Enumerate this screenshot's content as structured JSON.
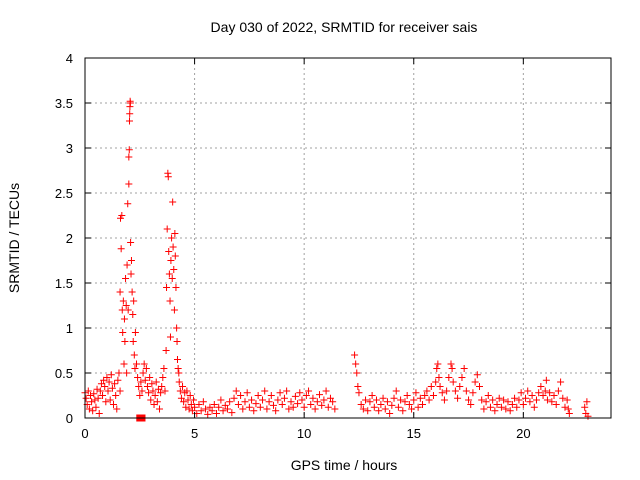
{
  "chart_data": {
    "type": "scatter",
    "title": "Day 030 of 2022, SRMTID for receiver sais",
    "xlabel": "GPS time / hours",
    "ylabel": "SRMTID / TECUs",
    "xlim": [
      0,
      24
    ],
    "ylim": [
      0,
      4
    ],
    "xticks": [
      0,
      5,
      10,
      15,
      20
    ],
    "yticks": [
      0,
      0.5,
      1,
      1.5,
      2,
      2.5,
      3,
      3.5,
      4
    ],
    "xtick_labels": [
      "0",
      "5",
      "10",
      "15",
      "20"
    ],
    "ytick_labels": [
      "0",
      "0.5",
      "1",
      "1.5",
      "2",
      "2.5",
      "3",
      "3.5",
      "4"
    ],
    "grid": true,
    "marker": "+",
    "color": "#ff0000",
    "series": [
      {
        "name": "SRMTID",
        "points": [
          [
            0.0,
            0.28
          ],
          [
            0.05,
            0.22
          ],
          [
            0.1,
            0.15
          ],
          [
            0.15,
            0.3
          ],
          [
            0.2,
            0.1
          ],
          [
            0.25,
            0.25
          ],
          [
            0.3,
            0.18
          ],
          [
            0.35,
            0.08
          ],
          [
            0.4,
            0.27
          ],
          [
            0.45,
            0.2
          ],
          [
            0.5,
            0.12
          ],
          [
            0.55,
            0.32
          ],
          [
            0.6,
            0.22
          ],
          [
            0.65,
            0.05
          ],
          [
            0.7,
            0.3
          ],
          [
            0.75,
            0.38
          ],
          [
            0.8,
            0.25
          ],
          [
            0.85,
            0.42
          ],
          [
            0.9,
            0.35
          ],
          [
            0.95,
            0.18
          ],
          [
            1.0,
            0.45
          ],
          [
            1.05,
            0.3
          ],
          [
            1.1,
            0.4
          ],
          [
            1.15,
            0.2
          ],
          [
            1.2,
            0.48
          ],
          [
            1.25,
            0.33
          ],
          [
            1.3,
            0.15
          ],
          [
            1.35,
            0.38
          ],
          [
            1.4,
            0.25
          ],
          [
            1.45,
            0.1
          ],
          [
            1.5,
            0.42
          ],
          [
            1.55,
            0.5
          ],
          [
            1.6,
            0.3
          ],
          [
            1.6,
            1.4
          ],
          [
            1.62,
            2.22
          ],
          [
            1.65,
            1.88
          ],
          [
            1.68,
            2.25
          ],
          [
            1.7,
            1.2
          ],
          [
            1.72,
            0.95
          ],
          [
            1.75,
            1.3
          ],
          [
            1.78,
            0.6
          ],
          [
            1.8,
            1.1
          ],
          [
            1.82,
            0.85
          ],
          [
            1.85,
            1.55
          ],
          [
            1.88,
            1.25
          ],
          [
            1.9,
            0.5
          ],
          [
            1.92,
            1.7
          ],
          [
            1.95,
            2.38
          ],
          [
            1.97,
            1.2
          ],
          [
            2.0,
            2.6
          ],
          [
            2.0,
            2.9
          ],
          [
            2.02,
            2.98
          ],
          [
            2.03,
            3.3
          ],
          [
            2.04,
            3.38
          ],
          [
            2.05,
            3.46
          ],
          [
            2.06,
            3.52
          ],
          [
            2.07,
            3.5
          ],
          [
            2.08,
            1.95
          ],
          [
            2.1,
            1.6
          ],
          [
            2.12,
            1.75
          ],
          [
            2.15,
            1.4
          ],
          [
            2.18,
            1.15
          ],
          [
            2.2,
            0.85
          ],
          [
            2.22,
            1.3
          ],
          [
            2.25,
            0.7
          ],
          [
            2.28,
            0.55
          ],
          [
            2.3,
            0.95
          ],
          [
            2.35,
            0.6
          ],
          [
            2.4,
            0.45
          ],
          [
            2.45,
            0.35
          ],
          [
            2.5,
            0.25
          ],
          [
            2.55,
            0.4
          ],
          [
            2.6,
            0.3
          ],
          [
            2.65,
            0.5
          ],
          [
            2.7,
            0.6
          ],
          [
            2.75,
            0.42
          ],
          [
            2.8,
            0.55
          ],
          [
            2.85,
            0.35
          ],
          [
            2.9,
            0.28
          ],
          [
            2.95,
            0.45
          ],
          [
            3.0,
            0.2
          ],
          [
            3.05,
            0.38
          ],
          [
            3.1,
            0.3
          ],
          [
            3.15,
            0.15
          ],
          [
            3.2,
            0.25
          ],
          [
            3.25,
            0.4
          ],
          [
            3.3,
            0.18
          ],
          [
            3.35,
            0.32
          ],
          [
            3.4,
            0.1
          ],
          [
            3.45,
            0.28
          ],
          [
            3.5,
            0.35
          ],
          [
            3.55,
            0.45
          ],
          [
            3.6,
            0.55
          ],
          [
            3.65,
            0.3
          ],
          [
            3.7,
            0.75
          ],
          [
            3.72,
            1.45
          ],
          [
            3.75,
            2.1
          ],
          [
            3.78,
            2.72
          ],
          [
            3.8,
            2.68
          ],
          [
            3.82,
            1.85
          ],
          [
            3.85,
            1.6
          ],
          [
            3.88,
            1.3
          ],
          [
            3.9,
            0.9
          ],
          [
            3.92,
            1.75
          ],
          [
            3.95,
            2.0
          ],
          [
            3.98,
            1.55
          ],
          [
            4.0,
            2.4
          ],
          [
            4.02,
            1.9
          ],
          [
            4.05,
            1.65
          ],
          [
            4.08,
            1.2
          ],
          [
            4.1,
            2.05
          ],
          [
            4.12,
            1.8
          ],
          [
            4.15,
            1.45
          ],
          [
            4.18,
            1.0
          ],
          [
            4.2,
            0.85
          ],
          [
            4.22,
            0.65
          ],
          [
            4.25,
            0.55
          ],
          [
            4.28,
            0.5
          ],
          [
            4.3,
            0.4
          ],
          [
            4.35,
            0.3
          ],
          [
            4.4,
            0.22
          ],
          [
            4.45,
            0.35
          ],
          [
            4.5,
            0.18
          ],
          [
            4.55,
            0.28
          ],
          [
            4.6,
            0.12
          ],
          [
            4.65,
            0.3
          ],
          [
            4.7,
            0.2
          ],
          [
            4.75,
            0.1
          ],
          [
            4.8,
            0.25
          ],
          [
            4.85,
            0.15
          ],
          [
            4.9,
            0.08
          ],
          [
            4.95,
            0.2
          ],
          [
            5.0,
            0.12
          ],
          [
            5.1,
            0.05
          ],
          [
            5.2,
            0.15
          ],
          [
            5.3,
            0.08
          ],
          [
            5.4,
            0.18
          ],
          [
            5.5,
            0.1
          ],
          [
            5.6,
            0.04
          ],
          [
            5.7,
            0.12
          ],
          [
            5.8,
            0.08
          ],
          [
            5.9,
            0.15
          ],
          [
            6.0,
            0.05
          ],
          [
            6.1,
            0.12
          ],
          [
            6.2,
            0.2
          ],
          [
            6.3,
            0.08
          ],
          [
            6.4,
            0.14
          ],
          [
            6.5,
            0.1
          ],
          [
            6.6,
            0.18
          ],
          [
            6.7,
            0.06
          ],
          [
            6.8,
            0.22
          ],
          [
            6.9,
            0.3
          ],
          [
            7.0,
            0.15
          ],
          [
            7.1,
            0.25
          ],
          [
            7.2,
            0.1
          ],
          [
            7.3,
            0.18
          ],
          [
            7.4,
            0.28
          ],
          [
            7.5,
            0.12
          ],
          [
            7.6,
            0.2
          ],
          [
            7.7,
            0.08
          ],
          [
            7.8,
            0.16
          ],
          [
            7.9,
            0.25
          ],
          [
            8.0,
            0.12
          ],
          [
            8.1,
            0.2
          ],
          [
            8.2,
            0.3
          ],
          [
            8.3,
            0.1
          ],
          [
            8.4,
            0.18
          ],
          [
            8.5,
            0.25
          ],
          [
            8.6,
            0.14
          ],
          [
            8.7,
            0.08
          ],
          [
            8.8,
            0.2
          ],
          [
            8.9,
            0.28
          ],
          [
            9.0,
            0.15
          ],
          [
            9.1,
            0.22
          ],
          [
            9.2,
            0.3
          ],
          [
            9.3,
            0.1
          ],
          [
            9.4,
            0.18
          ],
          [
            9.5,
            0.12
          ],
          [
            9.6,
            0.24
          ],
          [
            9.7,
            0.16
          ],
          [
            9.8,
            0.28
          ],
          [
            9.9,
            0.2
          ],
          [
            10.0,
            0.12
          ],
          [
            10.1,
            0.25
          ],
          [
            10.2,
            0.3
          ],
          [
            10.3,
            0.15
          ],
          [
            10.4,
            0.22
          ],
          [
            10.5,
            0.1
          ],
          [
            10.6,
            0.18
          ],
          [
            10.7,
            0.26
          ],
          [
            10.8,
            0.14
          ],
          [
            10.9,
            0.2
          ],
          [
            11.0,
            0.3
          ],
          [
            11.1,
            0.12
          ],
          [
            11.2,
            0.22
          ],
          [
            11.3,
            0.18
          ],
          [
            11.4,
            0.1
          ],
          [
            12.3,
            0.7
          ],
          [
            12.35,
            0.6
          ],
          [
            12.4,
            0.5
          ],
          [
            12.45,
            0.35
          ],
          [
            12.5,
            0.28
          ],
          [
            12.6,
            0.15
          ],
          [
            12.7,
            0.1
          ],
          [
            12.8,
            0.2
          ],
          [
            12.9,
            0.08
          ],
          [
            13.0,
            0.18
          ],
          [
            13.1,
            0.25
          ],
          [
            13.2,
            0.12
          ],
          [
            13.3,
            0.2
          ],
          [
            13.4,
            0.08
          ],
          [
            13.5,
            0.15
          ],
          [
            13.6,
            0.22
          ],
          [
            13.7,
            0.1
          ],
          [
            13.8,
            0.18
          ],
          [
            13.9,
            0.05
          ],
          [
            14.0,
            0.14
          ],
          [
            14.1,
            0.22
          ],
          [
            14.2,
            0.3
          ],
          [
            14.3,
            0.12
          ],
          [
            14.4,
            0.2
          ],
          [
            14.5,
            0.08
          ],
          [
            14.6,
            0.18
          ],
          [
            14.7,
            0.25
          ],
          [
            14.8,
            0.15
          ],
          [
            14.9,
            0.1
          ],
          [
            15.0,
            0.2
          ],
          [
            15.1,
            0.28
          ],
          [
            15.2,
            0.12
          ],
          [
            15.3,
            0.22
          ],
          [
            15.4,
            0.15
          ],
          [
            15.5,
            0.25
          ],
          [
            15.6,
            0.3
          ],
          [
            15.7,
            0.2
          ],
          [
            15.8,
            0.35
          ],
          [
            15.9,
            0.25
          ],
          [
            16.0,
            0.4
          ],
          [
            16.05,
            0.55
          ],
          [
            16.1,
            0.6
          ],
          [
            16.15,
            0.45
          ],
          [
            16.2,
            0.35
          ],
          [
            16.3,
            0.28
          ],
          [
            16.4,
            0.2
          ],
          [
            16.5,
            0.3
          ],
          [
            16.6,
            0.45
          ],
          [
            16.7,
            0.6
          ],
          [
            16.75,
            0.55
          ],
          [
            16.8,
            0.4
          ],
          [
            16.9,
            0.3
          ],
          [
            17.0,
            0.22
          ],
          [
            17.1,
            0.35
          ],
          [
            17.2,
            0.45
          ],
          [
            17.3,
            0.55
          ],
          [
            17.4,
            0.3
          ],
          [
            17.5,
            0.2
          ],
          [
            17.6,
            0.15
          ],
          [
            17.7,
            0.28
          ],
          [
            17.8,
            0.4
          ],
          [
            17.9,
            0.48
          ],
          [
            18.0,
            0.35
          ],
          [
            18.1,
            0.2
          ],
          [
            18.2,
            0.1
          ],
          [
            18.3,
            0.18
          ],
          [
            18.4,
            0.25
          ],
          [
            18.5,
            0.12
          ],
          [
            18.6,
            0.2
          ],
          [
            18.7,
            0.08
          ],
          [
            18.8,
            0.15
          ],
          [
            18.9,
            0.22
          ],
          [
            19.0,
            0.12
          ],
          [
            19.1,
            0.2
          ],
          [
            19.2,
            0.1
          ],
          [
            19.3,
            0.18
          ],
          [
            19.4,
            0.08
          ],
          [
            19.5,
            0.15
          ],
          [
            19.6,
            0.22
          ],
          [
            19.7,
            0.12
          ],
          [
            19.8,
            0.2
          ],
          [
            19.9,
            0.28
          ],
          [
            20.0,
            0.15
          ],
          [
            20.1,
            0.22
          ],
          [
            20.2,
            0.3
          ],
          [
            20.3,
            0.18
          ],
          [
            20.4,
            0.25
          ],
          [
            20.5,
            0.12
          ],
          [
            20.6,
            0.2
          ],
          [
            20.7,
            0.28
          ],
          [
            20.8,
            0.35
          ],
          [
            20.9,
            0.25
          ],
          [
            21.0,
            0.3
          ],
          [
            21.05,
            0.42
          ],
          [
            21.1,
            0.2
          ],
          [
            21.2,
            0.28
          ],
          [
            21.3,
            0.18
          ],
          [
            21.4,
            0.25
          ],
          [
            21.5,
            0.15
          ],
          [
            21.6,
            0.3
          ],
          [
            21.7,
            0.4
          ],
          [
            21.8,
            0.22
          ],
          [
            21.9,
            0.12
          ],
          [
            22.0,
            0.2
          ],
          [
            22.05,
            0.1
          ],
          [
            22.1,
            0.05
          ],
          [
            22.8,
            0.12
          ],
          [
            22.85,
            0.05
          ],
          [
            22.9,
            0.18
          ],
          [
            22.95,
            0.02
          ]
        ]
      }
    ],
    "filled_markers": [
      [
        2.5,
        0.0
      ],
      [
        2.6,
        0.0
      ]
    ]
  }
}
